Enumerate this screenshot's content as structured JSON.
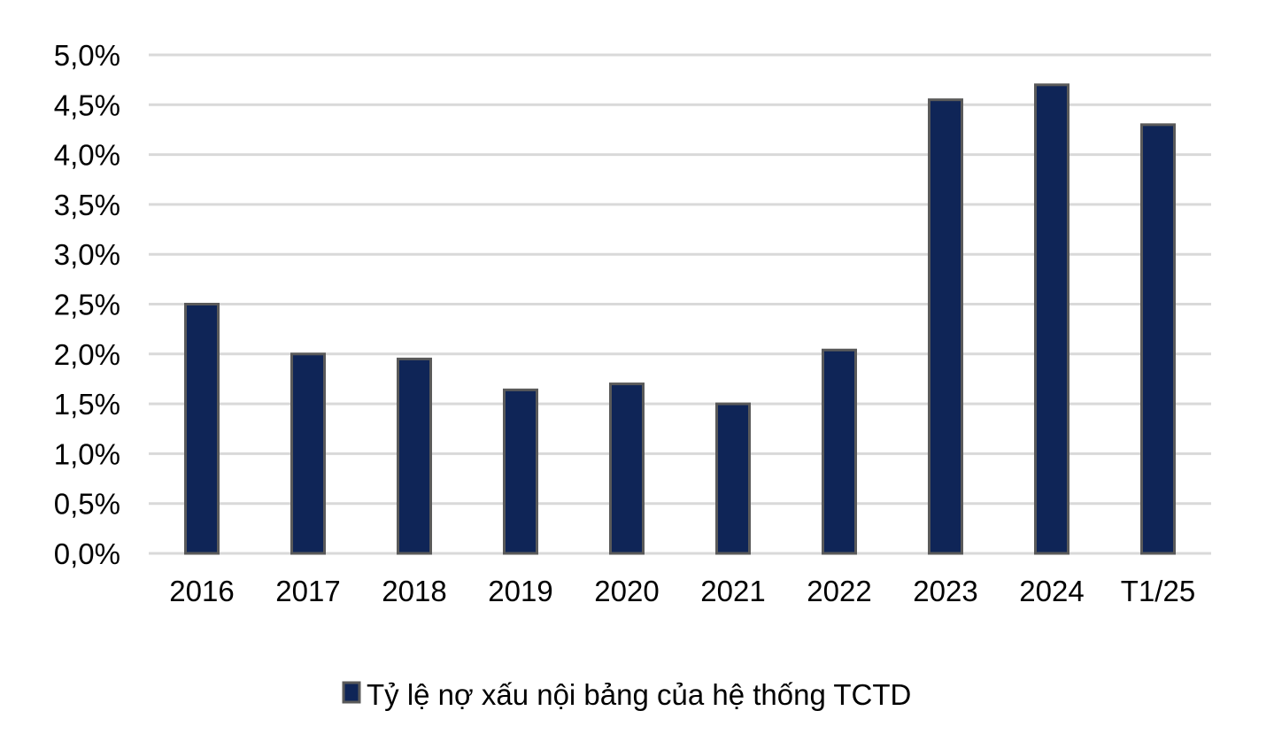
{
  "chart_data": {
    "type": "bar",
    "title": "",
    "xlabel": "",
    "ylabel": "",
    "categories": [
      "2016",
      "2017",
      "2018",
      "2019",
      "2020",
      "2021",
      "2022",
      "2023",
      "2024",
      "T1/25"
    ],
    "series": [
      {
        "name": "Tỷ lệ nợ xấu nội bảng của hệ thống TCTD",
        "values": [
          2.5,
          2.0,
          1.95,
          1.64,
          1.7,
          1.5,
          2.04,
          4.55,
          4.7,
          4.3
        ],
        "color": "#0f2557",
        "stroke": "#5a5a5a"
      }
    ],
    "ylim": [
      0,
      5.0
    ],
    "yticks": [
      0,
      0.5,
      1.0,
      1.5,
      2.0,
      2.5,
      3.0,
      3.5,
      4.0,
      4.5,
      5.0
    ],
    "ytick_labels": [
      "0,0%",
      "0,5%",
      "1,0%",
      "1,5%",
      "2,0%",
      "2,5%",
      "3,0%",
      "3,5%",
      "4,0%",
      "4,5%",
      "5,0%"
    ],
    "grid": true,
    "grid_color": "#d9d9d9",
    "legend_position": "bottom-center"
  }
}
